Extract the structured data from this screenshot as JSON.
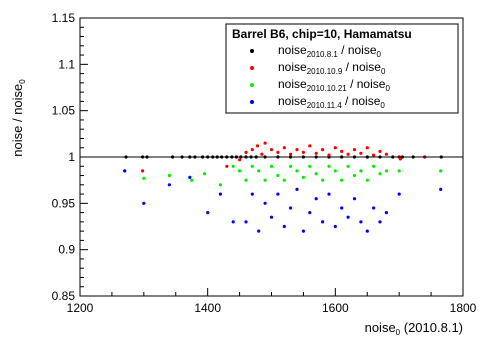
{
  "chart_data": {
    "type": "scatter",
    "title": "",
    "xlabel_main": "noise",
    "xlabel_sub": "0",
    "xlabel_rest": " (2010.8.1)",
    "ylabel_main": "noise / noise",
    "ylabel_sub": "0",
    "xlim": [
      1200,
      1800
    ],
    "ylim": [
      0.85,
      1.15
    ],
    "xticks": [
      1200,
      1400,
      1600,
      1800
    ],
    "yticks": [
      0.85,
      0.9,
      0.95,
      1,
      1.05,
      1.1,
      1.15
    ],
    "reference_line_y": 1.0,
    "grid": false,
    "legend": {
      "placement": "top-right",
      "title": "Barrel B6, chip=10, Hamamatsu",
      "entries": [
        {
          "label_main": "noise",
          "label_sub": "2010.8.1",
          "label_rest": " / noise",
          "label_sub2": "0",
          "color": "#000000"
        },
        {
          "label_main": "noise",
          "label_sub": "2010.10.9",
          "label_rest": " / noise",
          "label_sub2": "0",
          "color": "#ff0000"
        },
        {
          "label_main": "noise",
          "label_sub": "2010.10.21",
          "label_rest": " / noise",
          "label_sub2": "0",
          "color": "#00ee00"
        },
        {
          "label_main": "noise",
          "label_sub": "2010.11.4",
          "label_rest": " / noise",
          "label_sub2": "0",
          "color": "#0000ff"
        }
      ]
    },
    "series": [
      {
        "color": "#000000",
        "points": [
          [
            1272,
            1.0
          ],
          [
            1298,
            1.0
          ],
          [
            1305,
            1.0
          ],
          [
            1345,
            1.0
          ],
          [
            1360,
            1.0
          ],
          [
            1372,
            1.0
          ],
          [
            1380,
            1.0
          ],
          [
            1392,
            1.0
          ],
          [
            1400,
            1.0
          ],
          [
            1408,
            1.0
          ],
          [
            1415,
            1.0
          ],
          [
            1422,
            1.0
          ],
          [
            1430,
            1.0
          ],
          [
            1438,
            1.0
          ],
          [
            1445,
            1.0
          ],
          [
            1452,
            1.0
          ],
          [
            1460,
            1.0
          ],
          [
            1468,
            1.0
          ],
          [
            1476,
            1.0
          ],
          [
            1490,
            1.0
          ],
          [
            1510,
            1.0
          ],
          [
            1530,
            1.0
          ],
          [
            1550,
            1.0
          ],
          [
            1570,
            1.0
          ],
          [
            1590,
            1.0
          ],
          [
            1610,
            1.0
          ],
          [
            1630,
            1.0
          ],
          [
            1650,
            1.0
          ],
          [
            1670,
            1.0
          ],
          [
            1690,
            1.0
          ],
          [
            1700,
            1.0
          ],
          [
            1705,
            1.0
          ],
          [
            1722,
            1.0
          ],
          [
            1740,
            1.0
          ],
          [
            1766,
            1.0
          ]
        ]
      },
      {
        "color": "#ff0000",
        "points": [
          [
            1298,
            0.985
          ],
          [
            1430,
            0.99
          ],
          [
            1450,
            0.997
          ],
          [
            1460,
            1.005
          ],
          [
            1470,
            1.008
          ],
          [
            1478,
            1.012
          ],
          [
            1485,
            1.003
          ],
          [
            1490,
            1.015
          ],
          [
            1500,
            1.008
          ],
          [
            1510,
            1.005
          ],
          [
            1520,
            1.01
          ],
          [
            1530,
            1.003
          ],
          [
            1540,
            1.008
          ],
          [
            1550,
            1.005
          ],
          [
            1560,
            1.012
          ],
          [
            1570,
            1.004
          ],
          [
            1580,
            1.008
          ],
          [
            1590,
            1.002
          ],
          [
            1600,
            1.01
          ],
          [
            1610,
            1.006
          ],
          [
            1620,
            1.003
          ],
          [
            1630,
            1.008
          ],
          [
            1640,
            1.004
          ],
          [
            1650,
            1.01
          ],
          [
            1660,
            1.002
          ],
          [
            1670,
            1.006
          ],
          [
            1680,
            1.003
          ],
          [
            1700,
            1.0
          ],
          [
            1702,
            0.998
          ],
          [
            1740,
            1.0
          ]
        ]
      },
      {
        "color": "#00ee00",
        "points": [
          [
            1270,
            0.985
          ],
          [
            1300,
            0.977
          ],
          [
            1340,
            0.98
          ],
          [
            1375,
            0.975
          ],
          [
            1395,
            0.982
          ],
          [
            1420,
            0.97
          ],
          [
            1440,
            0.99
          ],
          [
            1450,
            0.985
          ],
          [
            1460,
            0.975
          ],
          [
            1470,
            0.99
          ],
          [
            1480,
            0.985
          ],
          [
            1490,
            0.975
          ],
          [
            1500,
            0.99
          ],
          [
            1510,
            0.98
          ],
          [
            1520,
            0.975
          ],
          [
            1530,
            0.99
          ],
          [
            1540,
            0.985
          ],
          [
            1550,
            0.978
          ],
          [
            1560,
            0.99
          ],
          [
            1570,
            0.982
          ],
          [
            1580,
            0.975
          ],
          [
            1590,
            0.99
          ],
          [
            1600,
            0.985
          ],
          [
            1610,
            0.975
          ],
          [
            1620,
            0.99
          ],
          [
            1630,
            0.98
          ],
          [
            1640,
            0.985
          ],
          [
            1650,
            0.975
          ],
          [
            1660,
            0.99
          ],
          [
            1670,
            0.982
          ],
          [
            1680,
            0.985
          ],
          [
            1700,
            0.985
          ],
          [
            1765,
            0.985
          ]
        ]
      },
      {
        "color": "#0000ff",
        "points": [
          [
            1270,
            0.985
          ],
          [
            1300,
            0.95
          ],
          [
            1340,
            0.97
          ],
          [
            1372,
            0.978
          ],
          [
            1400,
            0.94
          ],
          [
            1420,
            0.96
          ],
          [
            1440,
            0.93
          ],
          [
            1460,
            0.93
          ],
          [
            1470,
            0.96
          ],
          [
            1480,
            0.92
          ],
          [
            1490,
            0.95
          ],
          [
            1500,
            0.935
          ],
          [
            1510,
            0.96
          ],
          [
            1520,
            0.925
          ],
          [
            1530,
            0.945
          ],
          [
            1540,
            0.965
          ],
          [
            1550,
            0.92
          ],
          [
            1560,
            0.94
          ],
          [
            1570,
            0.955
          ],
          [
            1580,
            0.93
          ],
          [
            1590,
            0.96
          ],
          [
            1600,
            0.925
          ],
          [
            1610,
            0.945
          ],
          [
            1620,
            0.935
          ],
          [
            1630,
            0.955
          ],
          [
            1640,
            0.93
          ],
          [
            1650,
            0.92
          ],
          [
            1660,
            0.945
          ],
          [
            1670,
            0.93
          ],
          [
            1680,
            0.94
          ],
          [
            1700,
            0.96
          ],
          [
            1765,
            0.965
          ]
        ]
      }
    ]
  }
}
